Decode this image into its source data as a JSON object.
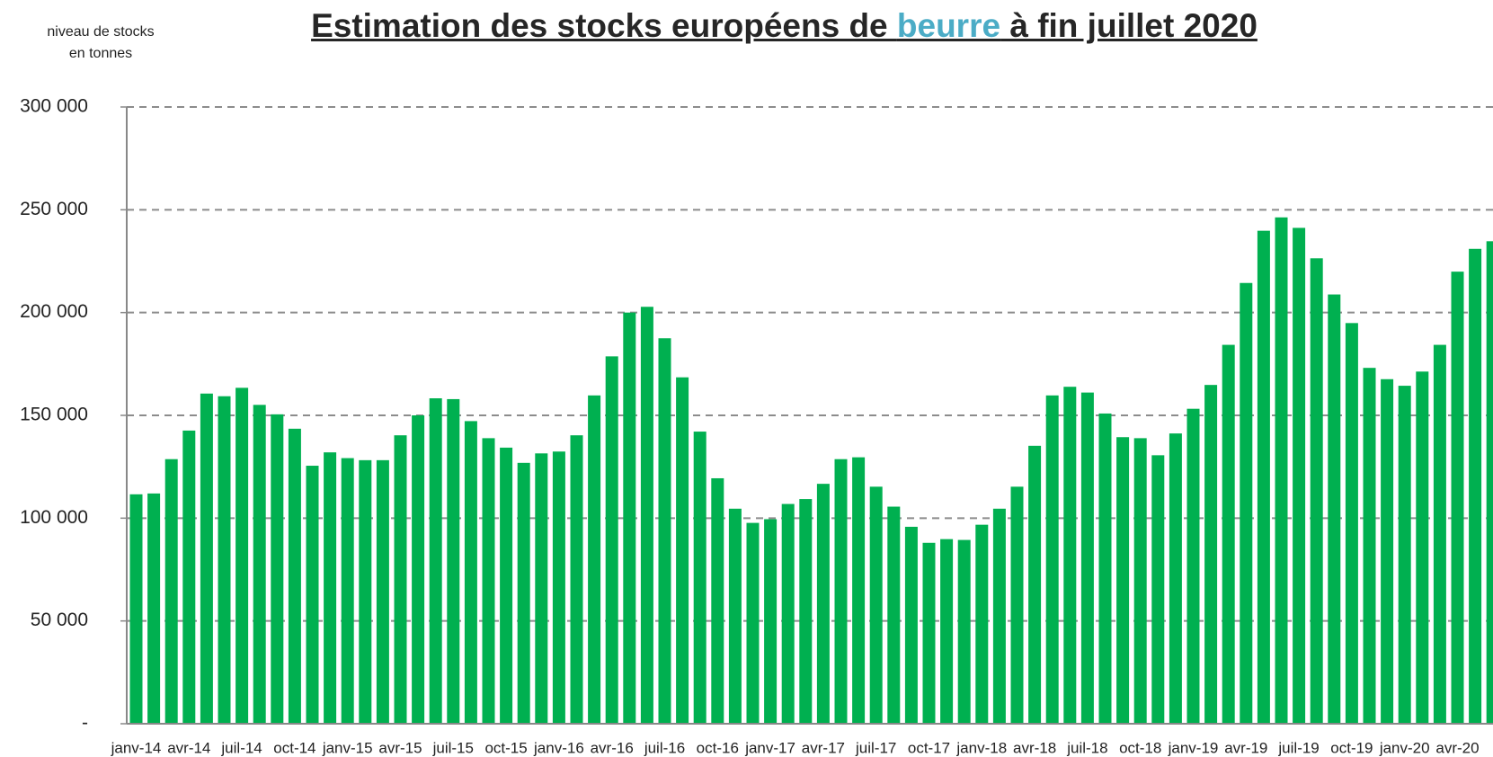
{
  "chart_data": {
    "type": "bar",
    "title": [
      "Estimation des stocks européens de ",
      "beurre",
      " à fin juillet 2020"
    ],
    "y_label": [
      "niveau de stocks",
      "en tonnes"
    ],
    "categories": [
      "janv-14",
      null,
      null,
      "avr-14",
      null,
      null,
      "juil-14",
      null,
      null,
      "oct-14",
      null,
      null,
      "janv-15",
      null,
      null,
      "avr-15",
      null,
      null,
      "juil-15",
      null,
      null,
      "oct-15",
      null,
      null,
      "janv-16",
      null,
      null,
      "avr-16",
      null,
      null,
      "juil-16",
      null,
      null,
      "oct-16",
      null,
      null,
      "janv-17",
      null,
      null,
      "avr-17",
      null,
      null,
      "juil-17",
      null,
      null,
      "oct-17",
      null,
      null,
      "janv-18",
      null,
      null,
      "avr-18",
      null,
      null,
      "juil-18",
      null,
      null,
      "oct-18",
      null,
      null,
      "janv-19",
      null,
      null,
      "avr-19",
      null,
      null,
      "juil-19",
      null,
      null,
      "oct-19",
      null,
      null,
      "janv-20",
      null,
      null,
      "avr-20",
      null,
      null
    ],
    "values": [
      111600,
      112000,
      128700,
      142600,
      160600,
      159300,
      163400,
      155100,
      150500,
      143500,
      125500,
      132000,
      129200,
      128200,
      128200,
      140300,
      150000,
      158300,
      157900,
      147200,
      138900,
      134300,
      126900,
      131500,
      132400,
      140300,
      159700,
      178700,
      200000,
      202800,
      187500,
      168500,
      142100,
      119400,
      104600,
      97700,
      99500,
      106900,
      109300,
      116700,
      128700,
      129600,
      115300,
      105600,
      95800,
      88000,
      89800,
      89400,
      96800,
      104600,
      115300,
      135200,
      159700,
      163900,
      161100,
      150900,
      139400,
      138900,
      130600,
      141200,
      153200,
      164800,
      184300,
      214400,
      239800,
      246300,
      241200,
      226400,
      208800,
      194900,
      173100,
      167600,
      164400,
      171300,
      184300,
      219900,
      231000,
      234700
    ],
    "color": "#00b050",
    "ylim": [
      0,
      300000
    ],
    "yticks": [
      {
        "value": 0,
        "label": "-"
      },
      {
        "value": 50000,
        "label": "50 000"
      },
      {
        "value": 100000,
        "label": "100 000"
      },
      {
        "value": 150000,
        "label": "150 000"
      },
      {
        "value": 200000,
        "label": "200 000"
      },
      {
        "value": 250000,
        "label": "250 000"
      },
      {
        "value": 300000,
        "label": "300 000"
      }
    ],
    "grid": true
  }
}
